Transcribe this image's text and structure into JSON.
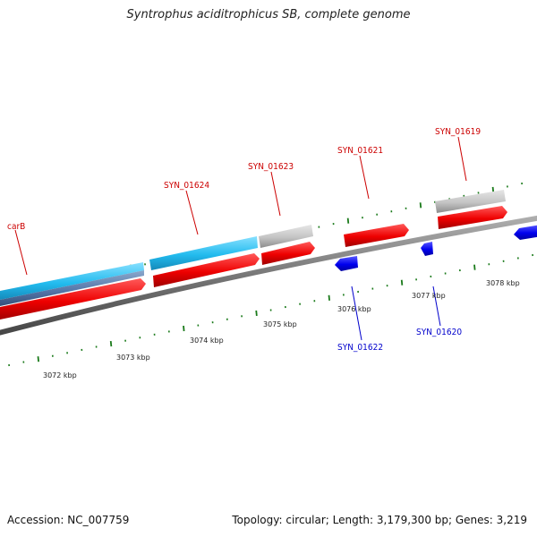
{
  "title": "Syntrophus aciditrophicus SB, complete genome",
  "accession": "Accession: NC_007759",
  "genome_stats": "Topology: circular; Length: 3,179,300 bp; Genes: 3,219",
  "colors": {
    "forward_gene": "#e00000",
    "reverse_gene": "#0000e0",
    "cds_cyan": "#22bbee",
    "cds_grey": "#c8c8c8",
    "backbone": "#777777",
    "tick": "#1a7a1a",
    "forward_label": "#cc0000",
    "reverse_label": "#0000cc"
  },
  "scale_labels": [
    "3072 kbp",
    "3073 kbp",
    "3074 kbp",
    "3075 kbp",
    "3076 kbp",
    "3077 kbp",
    "3078 kbp"
  ],
  "forward_gene_labels": [
    "carB",
    "SYN_01624",
    "SYN_01623",
    "SYN_01621",
    "SYN_01619"
  ],
  "reverse_gene_labels": [
    "SYN_01622",
    "SYN_01620"
  ]
}
